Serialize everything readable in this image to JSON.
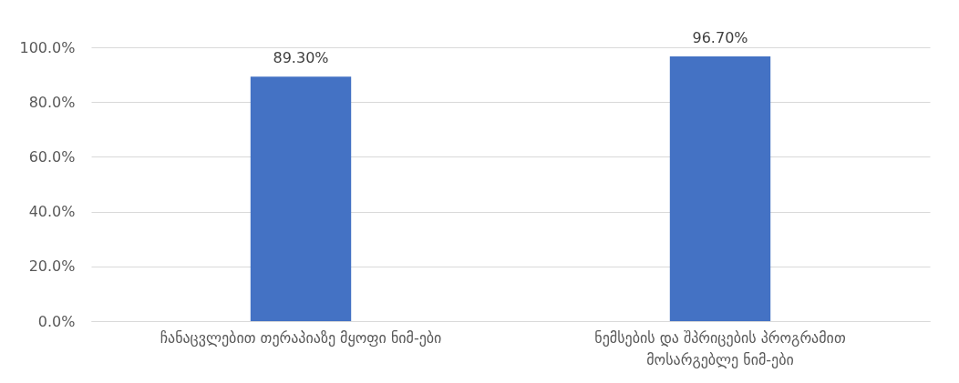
{
  "chart_data": {
    "type": "bar",
    "categories": [
      "ჩანაცვლებით თერაპიაზე მყოფი ნიმ-ები",
      "ნემსების და შპრიცების პროგრამით მოსარგებლე ნიმ-ები"
    ],
    "series": [
      {
        "color": "#4472c4",
        "values": [
          89.3,
          96.7
        ]
      }
    ],
    "value_labels": [
      "89.30%",
      "96.70%"
    ],
    "ylim": [
      0,
      100
    ],
    "yticks": [
      {
        "value": 0,
        "label": "0.0%"
      },
      {
        "value": 20,
        "label": "20.0%"
      },
      {
        "value": 40,
        "label": "40.0%"
      },
      {
        "value": 60,
        "label": "60.0%"
      },
      {
        "value": 80,
        "label": "80.0%"
      },
      {
        "value": 100,
        "label": "100.0%"
      }
    ],
    "grid": "y"
  }
}
